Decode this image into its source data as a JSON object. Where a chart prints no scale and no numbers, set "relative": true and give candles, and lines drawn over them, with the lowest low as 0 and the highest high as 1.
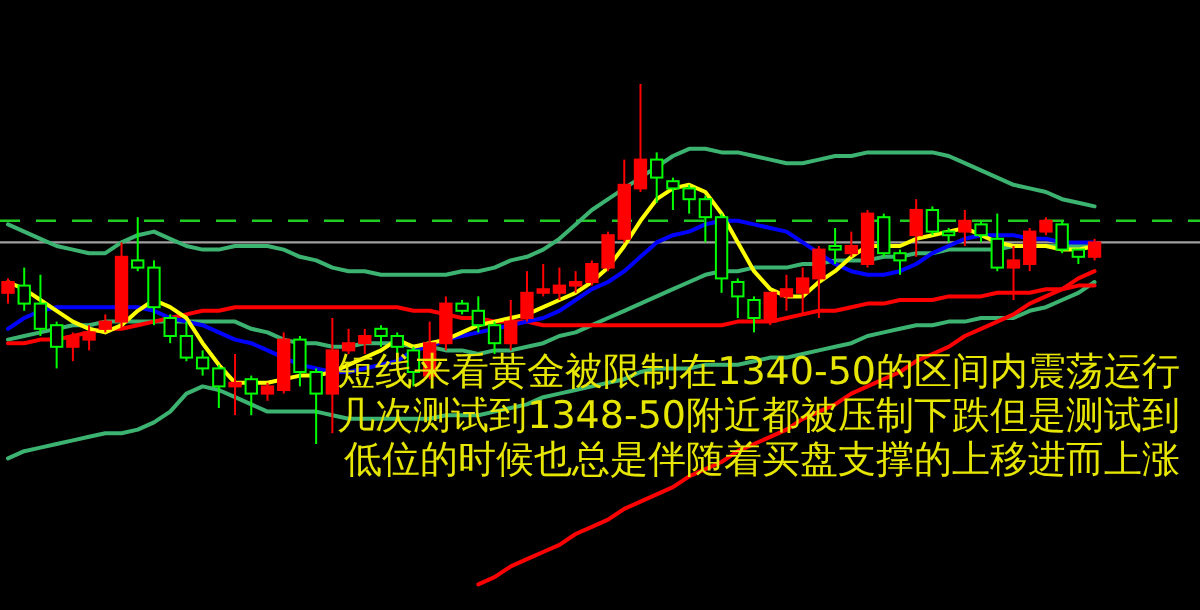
{
  "chart_data": {
    "type": "candlestick",
    "relative": true,
    "categories": [
      null,
      null,
      null,
      null,
      null,
      null,
      null,
      null,
      null,
      null,
      null,
      null,
      null,
      null,
      null,
      null,
      null,
      null,
      null,
      null,
      null,
      null,
      null,
      null,
      null,
      null,
      null,
      null,
      null,
      null,
      null,
      null,
      null,
      null,
      null,
      null,
      null,
      null,
      null,
      null,
      null,
      null,
      null,
      null,
      null,
      null,
      null,
      null,
      null,
      null,
      null,
      null,
      null,
      null,
      null,
      null,
      null,
      null,
      null,
      null,
      null,
      null,
      null,
      null,
      null,
      null,
      null,
      null
    ],
    "ohlc": [
      [
        0.42,
        0.46,
        0.39,
        0.45
      ],
      [
        0.44,
        0.49,
        0.37,
        0.39
      ],
      [
        0.39,
        0.47,
        0.3,
        0.32
      ],
      [
        0.33,
        0.34,
        0.21,
        0.27
      ],
      [
        0.27,
        0.31,
        0.23,
        0.3
      ],
      [
        0.29,
        0.33,
        0.26,
        0.31
      ],
      [
        0.32,
        0.36,
        0.31,
        0.34
      ],
      [
        0.34,
        0.56,
        0.32,
        0.52
      ],
      [
        0.51,
        0.63,
        0.48,
        0.49
      ],
      [
        0.49,
        0.51,
        0.33,
        0.38
      ],
      [
        0.35,
        0.36,
        0.28,
        0.3
      ],
      [
        0.3,
        0.34,
        0.23,
        0.24
      ],
      [
        0.24,
        0.26,
        0.19,
        0.21
      ],
      [
        0.21,
        0.22,
        0.1,
        0.16
      ],
      [
        0.16,
        0.25,
        0.08,
        0.17
      ],
      [
        0.18,
        0.19,
        0.08,
        0.14
      ],
      [
        0.14,
        0.17,
        0.12,
        0.16
      ],
      [
        0.15,
        0.31,
        0.14,
        0.29
      ],
      [
        0.29,
        0.3,
        0.16,
        0.2
      ],
      [
        0.2,
        0.21,
        0,
        0.14
      ],
      [
        0.14,
        0.35,
        0.03,
        0.26
      ],
      [
        0.26,
        0.32,
        0.25,
        0.28
      ],
      [
        0.28,
        0.32,
        0.25,
        0.3
      ],
      [
        0.32,
        0.33,
        0.27,
        0.3
      ],
      [
        0.3,
        0.31,
        0.25,
        0.27
      ],
      [
        0.26,
        0.27,
        0.16,
        0.2
      ],
      [
        0.19,
        0.34,
        0.18,
        0.28
      ],
      [
        0.28,
        0.41,
        0.26,
        0.39
      ],
      [
        0.39,
        0.4,
        0.36,
        0.37
      ],
      [
        0.37,
        0.41,
        0.31,
        0.33
      ],
      [
        0.33,
        0.34,
        0.25,
        0.28
      ],
      [
        0.28,
        0.4,
        0.26,
        0.34
      ],
      [
        0.35,
        0.48,
        0.34,
        0.42
      ],
      [
        0.42,
        0.5,
        0.41,
        0.43
      ],
      [
        0.42,
        0.49,
        0.4,
        0.44
      ],
      [
        0.44,
        0.48,
        0.42,
        0.45
      ],
      [
        0.45,
        0.51,
        0.44,
        0.5
      ],
      [
        0.49,
        0.59,
        0.48,
        0.58
      ],
      [
        0.57,
        0.79,
        0.56,
        0.72
      ],
      [
        0.71,
        1,
        0.7,
        0.79
      ],
      [
        0.79,
        0.81,
        0.67,
        0.74
      ],
      [
        0.73,
        0.74,
        0.65,
        0.71
      ],
      [
        0.71,
        0.72,
        0.64,
        0.68
      ],
      [
        0.68,
        0.69,
        0.56,
        0.63
      ],
      [
        0.63,
        0.64,
        0.42,
        0.46
      ],
      [
        0.45,
        0.46,
        0.35,
        0.41
      ],
      [
        0.4,
        0.41,
        0.31,
        0.35
      ],
      [
        0.34,
        0.42,
        0.33,
        0.42
      ],
      [
        0.41,
        0.47,
        0.37,
        0.43
      ],
      [
        0.42,
        0.49,
        0.36,
        0.46
      ],
      [
        0.46,
        0.55,
        0.35,
        0.54
      ],
      [
        0.55,
        0.6,
        0.5,
        0.54
      ],
      [
        0.53,
        0.59,
        0.52,
        0.55
      ],
      [
        0.5,
        0.65,
        0.49,
        0.64
      ],
      [
        0.63,
        0.64,
        0.52,
        0.53
      ],
      [
        0.53,
        0.54,
        0.47,
        0.51
      ],
      [
        0.58,
        0.68,
        0.52,
        0.65
      ],
      [
        0.65,
        0.66,
        0.58,
        0.59
      ],
      [
        0.59,
        0.6,
        0.56,
        0.58
      ],
      [
        0.59,
        0.65,
        0.55,
        0.62
      ],
      [
        0.61,
        0.62,
        0.56,
        0.58
      ],
      [
        0.57,
        0.64,
        0.48,
        0.49
      ],
      [
        0.49,
        0.55,
        0.4,
        0.51
      ],
      [
        0.5,
        0.6,
        0.48,
        0.59
      ],
      [
        0.59,
        0.63,
        0.58,
        0.62
      ],
      [
        0.61,
        0.62,
        0.53,
        0.54
      ],
      [
        0.54,
        0.54,
        0.5,
        0.52
      ],
      [
        0.52,
        0.57,
        0.51,
        0.56
      ]
    ],
    "colors": [
      "#ff0000",
      "#00ff00",
      "#00ff00",
      "#00ff00",
      "#ff0000",
      "#ff0000",
      "#ff0000",
      "#ff0000",
      "#00ff00",
      "#00ff00",
      "#00ff00",
      "#00ff00",
      "#00ff00",
      "#00ff00",
      "#ff0000",
      "#00ff00",
      "#ff0000",
      "#ff0000",
      "#00ff00",
      "#00ff00",
      "#ff0000",
      "#ff0000",
      "#ff0000",
      "#00ff00",
      "#00ff00",
      "#00ff00",
      "#ff0000",
      "#ff0000",
      "#00ff00",
      "#00ff00",
      "#00ff00",
      "#ff0000",
      "#ff0000",
      "#ff0000",
      "#ff0000",
      "#ff0000",
      "#ff0000",
      "#ff0000",
      "#ff0000",
      "#ff0000",
      "#00ff00",
      "#00ff00",
      "#00ff00",
      "#00ff00",
      "#00ff00",
      "#00ff00",
      "#00ff00",
      "#ff0000",
      "#ff0000",
      "#ff0000",
      "#ff0000",
      "#00ff00",
      "#ff0000",
      "#ff0000",
      "#00ff00",
      "#00ff00",
      "#ff0000",
      "#00ff00",
      "#00ff00",
      "#ff0000",
      "#00ff00",
      "#00ff00",
      "#ff0000",
      "#ff0000",
      "#ff0000",
      "#00ff00",
      "#00ff00",
      "#ff0000"
    ],
    "series": [
      {
        "type": "line",
        "color": "#3cb371",
        "values": [
          0.61,
          0.59,
          0.57,
          0.55,
          0.54,
          0.53,
          0.53,
          0.56,
          0.58,
          0.59,
          0.57,
          0.55,
          0.54,
          0.54,
          0.55,
          0.55,
          0.55,
          0.54,
          0.52,
          0.51,
          0.49,
          0.48,
          0.48,
          0.47,
          0.47,
          0.47,
          0.47,
          0.47,
          0.48,
          0.48,
          0.49,
          0.51,
          0.52,
          0.54,
          0.57,
          0.61,
          0.65,
          0.68,
          0.71,
          0.74,
          0.77,
          0.8,
          0.82,
          0.82,
          0.81,
          0.81,
          0.8,
          0.79,
          0.78,
          0.78,
          0.79,
          0.8,
          0.8,
          0.81,
          0.81,
          0.81,
          0.81,
          0.81,
          0.8,
          0.78,
          0.76,
          0.74,
          0.72,
          0.71,
          0.7,
          0.68,
          0.67,
          0.66
        ]
      },
      {
        "type": "line",
        "color": "#3cb371",
        "values": [
          0.29,
          0.3,
          0.31,
          0.32,
          0.33,
          0.33,
          0.34,
          0.34,
          0.34,
          0.34,
          0.34,
          0.34,
          0.34,
          0.34,
          0.34,
          0.32,
          0.31,
          0.29,
          0.28,
          0.28,
          0.27,
          0.27,
          0.28,
          0.28,
          0.28,
          0.27,
          0.27,
          0.26,
          0.26,
          0.25,
          0.26,
          0.26,
          0.27,
          0.28,
          0.3,
          0.31,
          0.33,
          0.35,
          0.37,
          0.39,
          0.41,
          0.43,
          0.45,
          0.47,
          0.48,
          0.48,
          0.49,
          0.49,
          0.49,
          0.5,
          0.5,
          0.51,
          0.51,
          0.51,
          0.52,
          0.52,
          0.53,
          0.53,
          0.54,
          0.54,
          0.54,
          0.54,
          0.55,
          0.55,
          0.55,
          0.55,
          0.55,
          0.55
        ]
      },
      {
        "type": "line",
        "color": "#3cb371",
        "values": [
          -0.04,
          -0.02,
          -0.01,
          0,
          0.01,
          0.02,
          0.03,
          0.03,
          0.04,
          0.06,
          0.09,
          0.14,
          0.16,
          0.15,
          0.13,
          0.11,
          0.09,
          0.09,
          0.09,
          0.09,
          0.08,
          0.07,
          0.07,
          0.07,
          0.07,
          0.07,
          0.07,
          0.08,
          0.08,
          0.08,
          0.09,
          0.1,
          0.11,
          0.13,
          0.14,
          0.15,
          0.16,
          0.17,
          0.18,
          0.2,
          0.21,
          0.21,
          0.21,
          0.22,
          0.22,
          0.22,
          0.23,
          0.24,
          0.24,
          0.25,
          0.26,
          0.27,
          0.28,
          0.3,
          0.31,
          0.32,
          0.33,
          0.33,
          0.34,
          0.34,
          0.35,
          0.35,
          0.35,
          0.37,
          0.38,
          0.4,
          0.42,
          0.45
        ]
      },
      {
        "type": "line",
        "color": "#ff0000",
        "values": [
          0.28,
          0.28,
          0.29,
          0.29,
          0.3,
          0.31,
          0.32,
          0.32,
          0.33,
          0.34,
          0.35,
          0.36,
          0.37,
          0.37,
          0.38,
          0.38,
          0.38,
          0.38,
          0.38,
          0.38,
          0.38,
          0.38,
          0.38,
          0.38,
          0.38,
          0.37,
          0.37,
          0.36,
          0.35,
          0.35,
          0.34,
          0.34,
          0.34,
          0.33,
          0.33,
          0.33,
          0.33,
          0.33,
          0.33,
          0.33,
          0.33,
          0.33,
          0.33,
          0.33,
          0.33,
          0.34,
          0.34,
          0.34,
          0.35,
          0.36,
          0.37,
          0.37,
          0.38,
          0.39,
          0.39,
          0.4,
          0.4,
          0.4,
          0.41,
          0.41,
          0.41,
          0.42,
          0.42,
          0.42,
          0.43,
          0.43,
          0.44,
          0.44
        ]
      },
      {
        "type": "line",
        "color": "#0000ff",
        "values": [
          0.32,
          0.35,
          0.37,
          0.38,
          0.38,
          0.38,
          0.38,
          0.38,
          0.38,
          0.37,
          0.35,
          0.34,
          0.33,
          0.31,
          0.29,
          0.28,
          0.26,
          0.24,
          0.22,
          0.21,
          0.2,
          0.2,
          0.21,
          0.22,
          0.23,
          0.26,
          0.27,
          0.29,
          0.3,
          0.31,
          0.32,
          0.33,
          0.34,
          0.35,
          0.37,
          0.4,
          0.43,
          0.45,
          0.48,
          0.52,
          0.56,
          0.58,
          0.59,
          0.61,
          0.62,
          0.62,
          0.61,
          0.6,
          0.59,
          0.56,
          0.53,
          0.5,
          0.48,
          0.47,
          0.47,
          0.48,
          0.5,
          0.53,
          0.55,
          0.57,
          0.58,
          0.58,
          0.58,
          0.57,
          0.57,
          0.56,
          0.56,
          0.56
        ]
      },
      {
        "type": "line",
        "color": "#ffff00",
        "values": [
          0.45,
          0.43,
          0.4,
          0.37,
          0.34,
          0.32,
          0.31,
          0.33,
          0.37,
          0.4,
          0.38,
          0.35,
          0.28,
          0.22,
          0.17,
          0.17,
          0.17,
          0.18,
          0.19,
          0.19,
          0.2,
          0.22,
          0.24,
          0.26,
          0.29,
          0.27,
          0.28,
          0.29,
          0.31,
          0.33,
          0.34,
          0.35,
          0.36,
          0.38,
          0.4,
          0.42,
          0.45,
          0.49,
          0.55,
          0.62,
          0.68,
          0.71,
          0.72,
          0.7,
          0.64,
          0.56,
          0.48,
          0.43,
          0.41,
          0.41,
          0.45,
          0.48,
          0.52,
          0.55,
          0.55,
          0.55,
          0.57,
          0.58,
          0.59,
          0.6,
          0.58,
          0.56,
          0.55,
          0.55,
          0.55,
          0.54,
          0.54,
          0.55
        ]
      },
      {
        "type": "line",
        "color": "#ff0000",
        "values": [
          null,
          null,
          null,
          null,
          null,
          null,
          null,
          null,
          null,
          null,
          null,
          null,
          null,
          null,
          null,
          null,
          null,
          null,
          null,
          null,
          null,
          null,
          null,
          null,
          null,
          null,
          null,
          null,
          null,
          -0.39,
          -0.37,
          -0.34,
          -0.32,
          -0.3,
          -0.28,
          -0.25,
          -0.23,
          -0.21,
          -0.18,
          -0.16,
          -0.14,
          -0.12,
          -0.09,
          -0.07,
          -0.05,
          -0.02,
          0,
          0.02,
          0.04,
          0.07,
          0.09,
          0.11,
          0.14,
          0.16,
          0.18,
          0.2,
          0.23,
          0.25,
          0.27,
          0.3,
          0.32,
          0.34,
          0.36,
          0.39,
          0.41,
          0.43,
          0.46,
          0.48
        ]
      }
    ],
    "ref_lines": [
      {
        "axis": "y",
        "value": 0.62,
        "color": "#22cc22",
        "line_style": "dashed"
      },
      {
        "axis": "y",
        "value": 0.56,
        "color": "#a0a0a0",
        "line_style": "solid"
      }
    ],
    "annotations": [
      "短线来看黄金被限制在1340-50的区间内震荡运行",
      "几次测试到1348-50附近都被压制下跌但是测试到",
      "低位的时候也总是伴随着买盘支撑的上移进而上涨"
    ]
  }
}
